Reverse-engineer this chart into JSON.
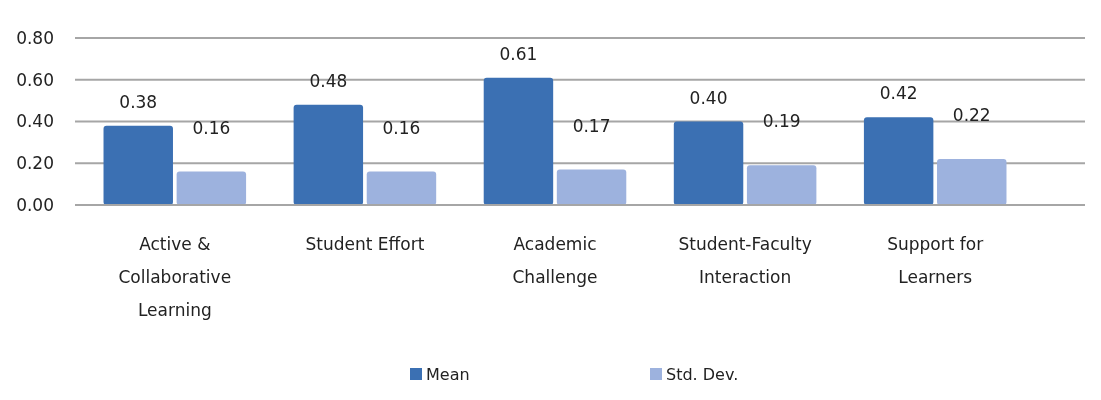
{
  "chart_data": {
    "type": "bar",
    "categories": [
      "Active & Collaborative Learning",
      "Student Effort",
      "Academic Challenge",
      "Student-Faculty Interaction",
      "Support for Learners"
    ],
    "series": [
      {
        "name": "Mean",
        "color": "#3b70b3",
        "values": [
          0.38,
          0.48,
          0.61,
          0.4,
          0.42
        ],
        "value_labels": [
          "0.38",
          "0.48",
          "0.61",
          "0.40",
          "0.42"
        ]
      },
      {
        "name": "Std. Dev.",
        "color": "#9db2de",
        "values": [
          0.16,
          0.16,
          0.17,
          0.19,
          0.22
        ],
        "value_labels": [
          "0.16",
          "0.16",
          "0.17",
          "0.19",
          "0.22"
        ]
      }
    ],
    "ylim": [
      0,
      0.8
    ],
    "yticks": [
      {
        "value": 0,
        "label": "0.00"
      },
      {
        "value": 0.2,
        "label": "0.20"
      },
      {
        "value": 0.4,
        "label": "0.40"
      },
      {
        "value": 0.6,
        "label": "0.60"
      },
      {
        "value": 0.8,
        "label": "0.80"
      }
    ],
    "grid": "y",
    "legend": "bottom"
  }
}
